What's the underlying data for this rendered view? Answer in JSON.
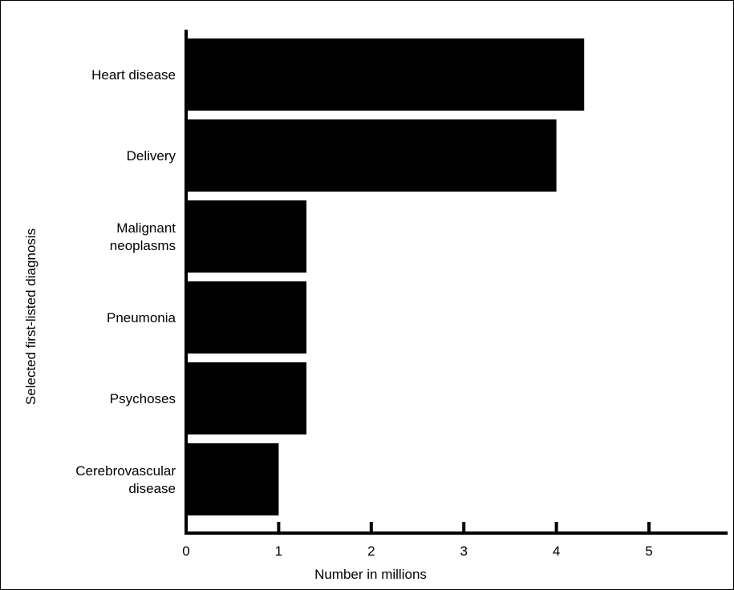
{
  "chart_data": {
    "type": "bar",
    "orientation": "horizontal",
    "categories": [
      [
        "Heart disease"
      ],
      [
        "Delivery"
      ],
      [
        "Malignant",
        "neoplasms"
      ],
      [
        "Pneumonia"
      ],
      [
        "Psychoses"
      ],
      [
        "Cerebrovascular",
        "disease"
      ]
    ],
    "values": [
      4.3,
      4.0,
      1.3,
      1.3,
      1.3,
      1.0
    ],
    "xlabel": "Number in millions",
    "ylabel": "Selected first-listed diagnosis",
    "xlim": [
      0,
      5.85
    ],
    "xticks": [
      0,
      1,
      2,
      3,
      4,
      5
    ],
    "bar_color": "#000000",
    "grid": false,
    "legend": "none"
  }
}
